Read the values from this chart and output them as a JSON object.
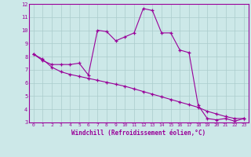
{
  "xlabel": "Windchill (Refroidissement éolien,°C)",
  "x_hours": [
    0,
    1,
    2,
    3,
    4,
    5,
    6,
    7,
    8,
    9,
    10,
    11,
    12,
    13,
    14,
    15,
    16,
    17,
    18,
    19,
    20,
    21,
    22,
    23
  ],
  "line1_y": [
    8.2,
    7.7,
    7.4,
    7.4,
    7.4,
    7.5,
    6.6,
    10.0,
    9.9,
    9.2,
    9.5,
    9.8,
    11.65,
    11.5,
    9.8,
    9.8,
    8.5,
    8.3,
    4.3,
    3.3,
    3.2,
    3.3,
    3.1,
    3.3
  ],
  "line2_y": [
    8.2,
    7.8,
    7.2,
    6.85,
    6.65,
    6.5,
    6.35,
    6.2,
    6.05,
    5.9,
    5.75,
    5.55,
    5.35,
    5.15,
    4.95,
    4.75,
    4.55,
    4.35,
    4.15,
    3.85,
    3.65,
    3.45,
    3.3,
    3.3
  ],
  "color": "#990099",
  "bg_color": "#cce8e8",
  "grid_color": "#aacccc",
  "ylim": [
    3,
    12
  ],
  "xlim": [
    -0.5,
    23.5
  ],
  "yticks": [
    3,
    4,
    5,
    6,
    7,
    8,
    9,
    10,
    11,
    12
  ],
  "xticks": [
    0,
    1,
    2,
    3,
    4,
    5,
    6,
    7,
    8,
    9,
    10,
    11,
    12,
    13,
    14,
    15,
    16,
    17,
    18,
    19,
    20,
    21,
    22,
    23
  ]
}
